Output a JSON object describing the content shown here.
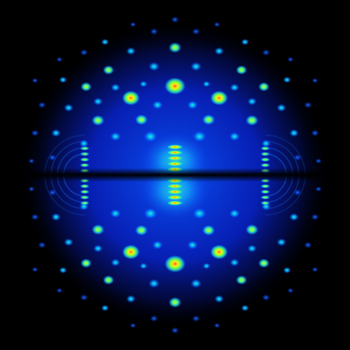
{
  "image": {
    "subject": "diffraction-pattern",
    "background_color": "#000000",
    "palette": [
      "#00005a",
      "#0a2cff",
      "#00a8ff",
      "#27f0d8",
      "#7dff3a",
      "#ffe81a",
      "#ff5a12"
    ],
    "symmetry": "mirror-horizontal-and-vertical"
  }
}
